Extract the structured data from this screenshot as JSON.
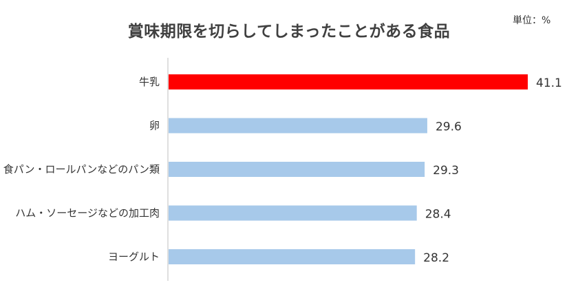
{
  "chart_data": {
    "type": "bar",
    "orientation": "horizontal",
    "title": "賞味期限を切らしてしまったことがある食品",
    "unit_label": "単位：%",
    "categories": [
      "牛乳",
      "卵",
      "食パン・ロールパンなどのパン類",
      "ハム・ソーセージなどの加工肉",
      "ヨーグルト"
    ],
    "values": [
      41.1,
      29.6,
      29.3,
      28.4,
      28.2
    ],
    "value_labels": [
      "41.1",
      "29.6",
      "29.3",
      "28.4",
      "28.2"
    ],
    "highlight_index": 0,
    "colors": {
      "highlight": "#ff0000",
      "default": "#a7c9ea",
      "axis": "#bfbfbf"
    },
    "xlim": [
      0,
      41.1
    ],
    "grid": false,
    "legend": "none"
  }
}
